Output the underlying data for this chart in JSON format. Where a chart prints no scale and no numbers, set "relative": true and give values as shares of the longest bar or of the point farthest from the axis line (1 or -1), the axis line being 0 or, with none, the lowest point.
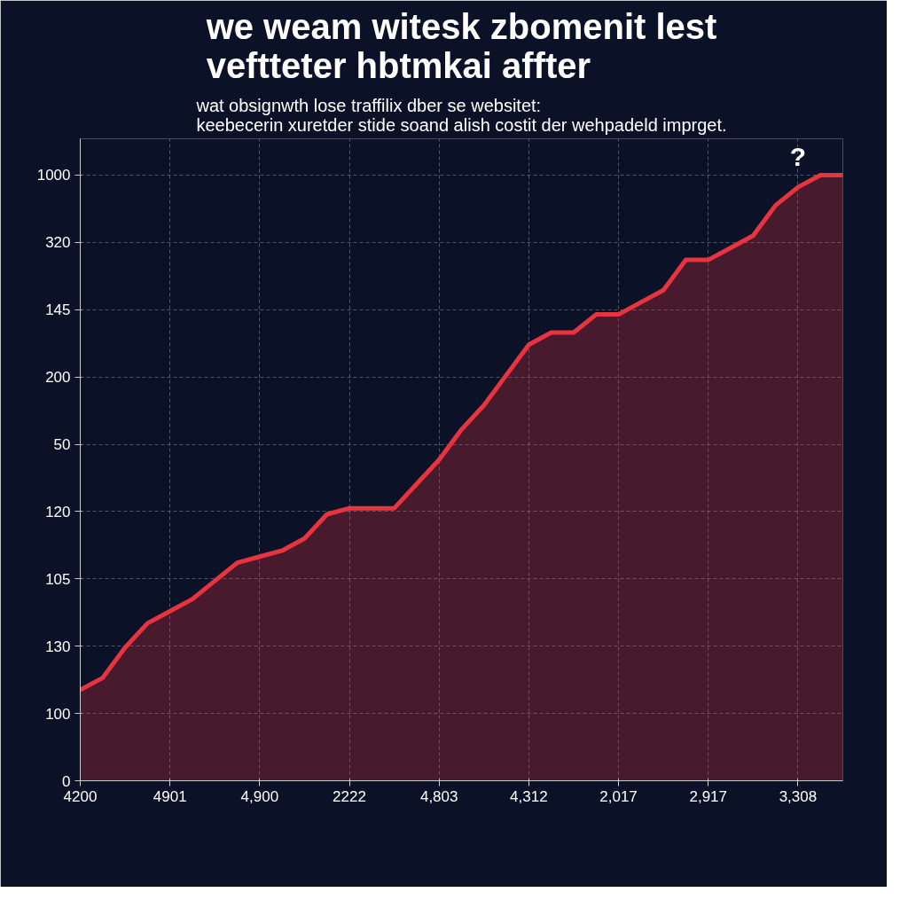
{
  "chart_data": {
    "type": "area",
    "title": "we weam witesk zbomenit lest\nveftteter hbtmkai affter",
    "subtitle": "wat obsignwth lose traffilix dber se websitet:\nkeebecerin xuretder stide soand alish costit der wehpadeld imprget.",
    "categories": [
      "4200",
      null,
      null,
      null,
      "4901",
      null,
      null,
      null,
      "4,900",
      null,
      null,
      null,
      "2222",
      null,
      null,
      null,
      "4,803",
      null,
      null,
      null,
      "4,312",
      null,
      null,
      null,
      "2,017",
      null,
      null,
      null,
      "2,917",
      null,
      null,
      null,
      "3,308",
      null,
      null
    ],
    "relative": true,
    "series": [
      {
        "color": "#e8343f",
        "values": [
          0.15,
          0.17,
          0.22,
          0.26,
          0.28,
          0.3,
          0.33,
          0.36,
          0.37,
          0.38,
          0.4,
          0.44,
          0.45,
          0.45,
          0.45,
          0.49,
          0.53,
          0.58,
          0.62,
          0.67,
          0.72,
          0.74,
          0.74,
          0.77,
          0.77,
          0.79,
          0.81,
          0.86,
          0.86,
          0.88,
          0.9,
          0.95,
          0.98,
          1,
          1
        ]
      }
    ],
    "grid": true,
    "line_style": "solid",
    "annotations": [
      "0",
      "100",
      "130",
      "105",
      "120",
      "50",
      "200",
      "145",
      "320",
      "1000",
      "?"
    ]
  }
}
